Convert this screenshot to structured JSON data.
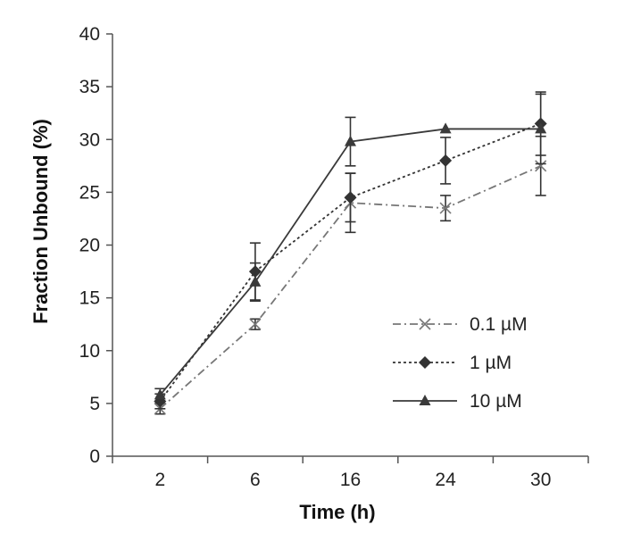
{
  "chart_data": {
    "type": "line",
    "title": "",
    "xlabel": "Time (h)",
    "ylabel": "Fraction Unbound  (%)",
    "categories": [
      "2",
      "6",
      "16",
      "24",
      "30"
    ],
    "ylim": [
      0,
      40
    ],
    "yticks": [
      0,
      5,
      10,
      15,
      20,
      25,
      30,
      35,
      40
    ],
    "grid": false,
    "legend_position": "right",
    "series": [
      {
        "name": "0.1 µM",
        "values": [
          4.5,
          12.5,
          24.0,
          23.5,
          27.5
        ],
        "errors": [
          0.5,
          0.5,
          2.8,
          1.2,
          2.8
        ],
        "marker": "x",
        "dash": "dash-dot",
        "color": "#777777"
      },
      {
        "name": "1 µM",
        "values": [
          5.2,
          17.5,
          24.5,
          28.0,
          31.5
        ],
        "errors": [
          0.7,
          2.7,
          2.3,
          2.2,
          3.0
        ],
        "marker": "diamond",
        "dash": "dotted",
        "color": "#333333"
      },
      {
        "name": "10 µM",
        "values": [
          5.8,
          16.5,
          29.8,
          31.0,
          31.0
        ],
        "errors": [
          0.6,
          1.8,
          2.3,
          0.0,
          3.3
        ],
        "marker": "triangle",
        "dash": "solid",
        "color": "#3a3a3a"
      }
    ]
  }
}
